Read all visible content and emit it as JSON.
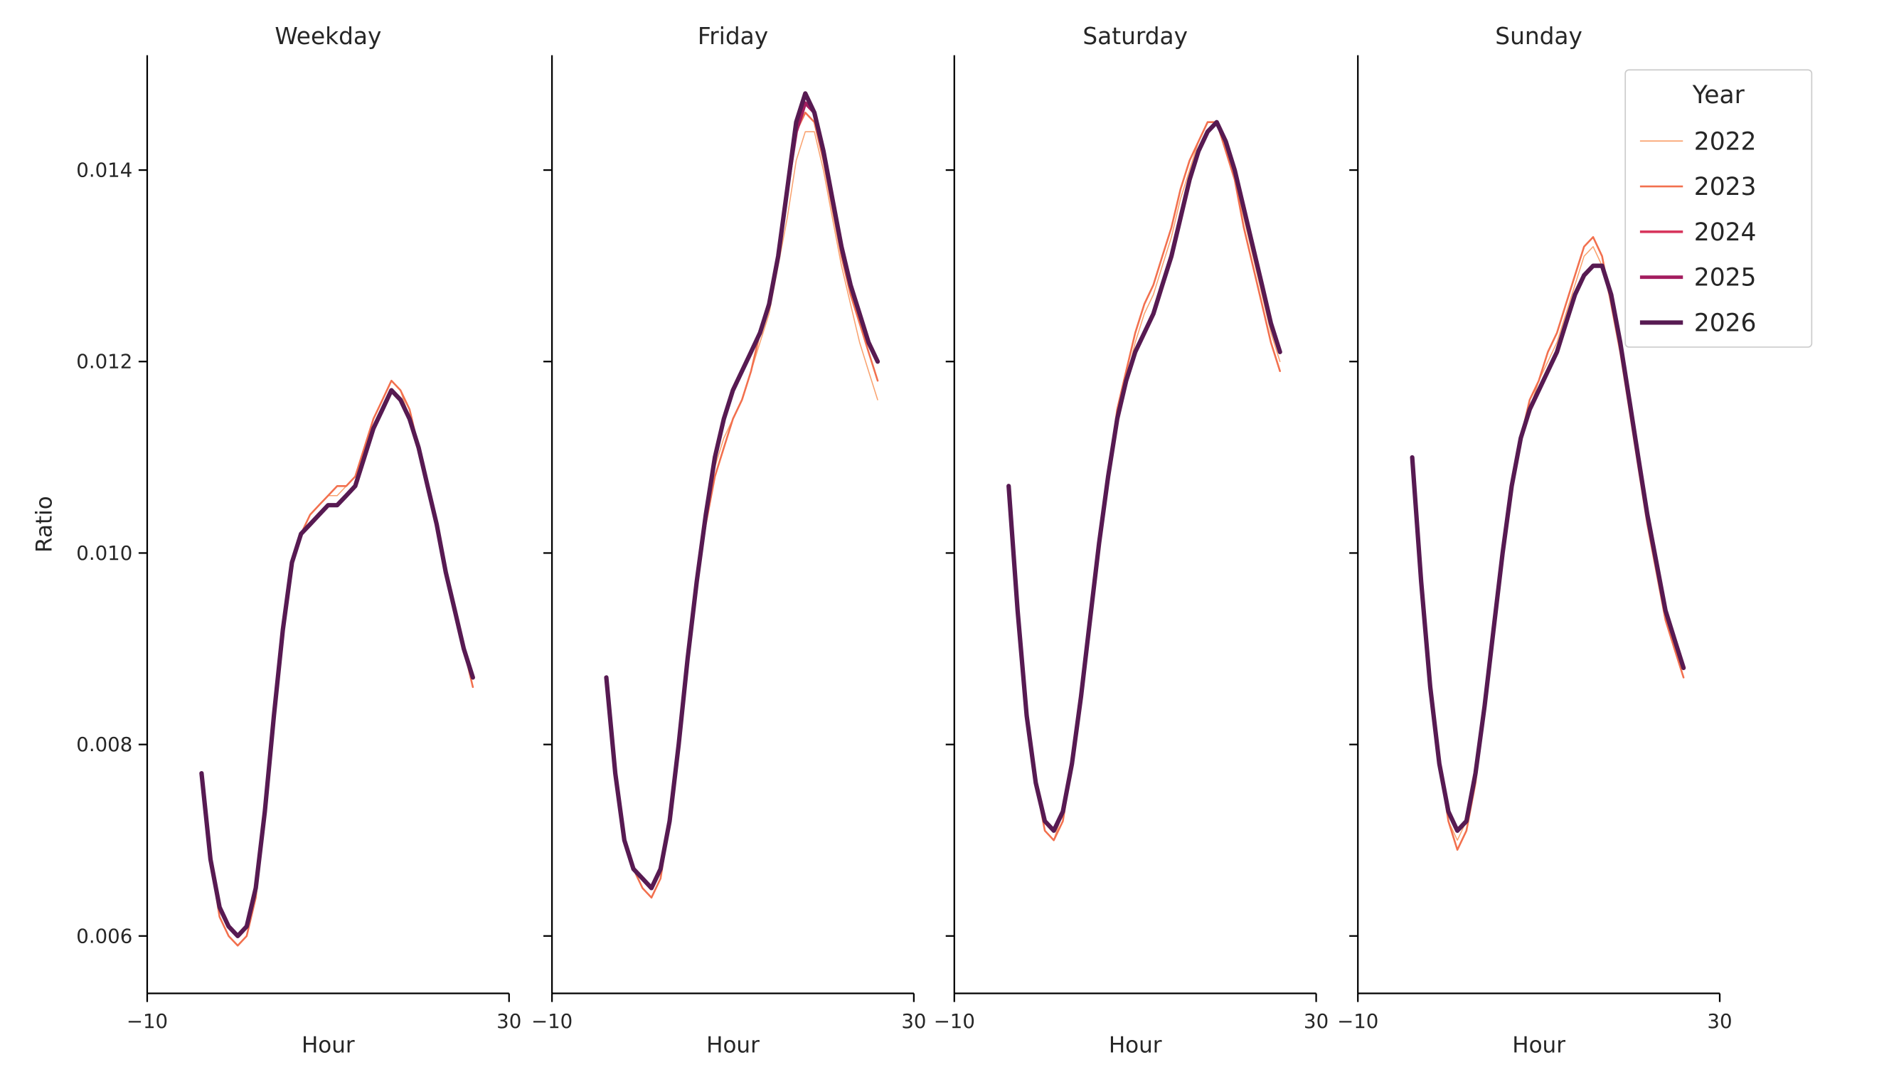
{
  "figure": {
    "background": "#ffffff",
    "text_color": "#262626",
    "axis_color": "#000000"
  },
  "legend": {
    "title": "Year",
    "entries": [
      {
        "label": "2022",
        "color": "#f9a26f",
        "line_width": 0.9
      },
      {
        "label": "2023",
        "color": "#f2704e",
        "line_width": 1.5
      },
      {
        "label": "2024",
        "color": "#d8365d",
        "line_width": 2.1
      },
      {
        "label": "2025",
        "color": "#a31d5f",
        "line_width": 2.8
      },
      {
        "label": "2026",
        "color": "#571a52",
        "line_width": 3.6
      }
    ]
  },
  "axes": {
    "ylabel": "Ratio",
    "xlim": [
      -10,
      30
    ],
    "ylim": [
      0.0054,
      0.0152
    ],
    "grid": false,
    "x_ticks": [
      {
        "value": -10,
        "label": "−10"
      },
      {
        "value": 30,
        "label": "30"
      }
    ],
    "y_ticks": [
      {
        "value": 0.006,
        "label": "0.006"
      },
      {
        "value": 0.008,
        "label": "0.008"
      },
      {
        "value": 0.01,
        "label": "0.010"
      },
      {
        "value": 0.012,
        "label": "0.012"
      },
      {
        "value": 0.014,
        "label": "0.014"
      }
    ]
  },
  "chart_data": [
    {
      "type": "line",
      "title": "Weekday",
      "xlabel": "Hour",
      "x": [
        -4,
        -3,
        -2,
        -1,
        0,
        1,
        2,
        3,
        4,
        5,
        6,
        7,
        8,
        9,
        10,
        11,
        12,
        13,
        14,
        15,
        16,
        17,
        18,
        19,
        20,
        21,
        22,
        23,
        24,
        25,
        26
      ],
      "series": [
        {
          "name": "2022",
          "values": [
            0.0077,
            0.0068,
            0.0063,
            0.0061,
            0.006,
            0.0061,
            0.0065,
            0.0073,
            0.0083,
            0.0092,
            0.0099,
            0.0102,
            0.0104,
            0.0105,
            0.0106,
            0.0106,
            0.0107,
            0.0108,
            0.0111,
            0.0114,
            0.0116,
            0.0118,
            0.0117,
            0.0114,
            0.0111,
            0.0107,
            0.0103,
            0.0098,
            0.0094,
            0.009,
            0.0086
          ]
        },
        {
          "name": "2023",
          "values": [
            0.0077,
            0.0068,
            0.0062,
            0.006,
            0.0059,
            0.006,
            0.0064,
            0.0073,
            0.0083,
            0.0092,
            0.0099,
            0.0102,
            0.0104,
            0.0105,
            0.0106,
            0.0107,
            0.0107,
            0.0108,
            0.0111,
            0.0114,
            0.0116,
            0.0118,
            0.0117,
            0.0115,
            0.0111,
            0.0107,
            0.0103,
            0.0098,
            0.0094,
            0.009,
            0.0086
          ]
        },
        {
          "name": "2024",
          "values": [
            0.0077,
            0.0068,
            0.0063,
            0.0061,
            0.006,
            0.0061,
            0.0065,
            0.0073,
            0.0083,
            0.0092,
            0.0099,
            0.0102,
            0.0103,
            0.0104,
            0.0105,
            0.0105,
            0.0106,
            0.0107,
            0.011,
            0.0113,
            0.0115,
            0.0117,
            0.0116,
            0.0114,
            0.0111,
            0.0107,
            0.0103,
            0.0098,
            0.0094,
            0.009,
            0.0087
          ]
        },
        {
          "name": "2025",
          "values": [
            0.0077,
            0.0068,
            0.0063,
            0.0061,
            0.006,
            0.0061,
            0.0065,
            0.0073,
            0.0083,
            0.0092,
            0.0099,
            0.0102,
            0.0103,
            0.0104,
            0.0105,
            0.0105,
            0.0106,
            0.0107,
            0.011,
            0.0113,
            0.0115,
            0.0117,
            0.0116,
            0.0114,
            0.0111,
            0.0107,
            0.0103,
            0.0098,
            0.0094,
            0.009,
            0.0087
          ]
        },
        {
          "name": "2026",
          "values": [
            0.0077,
            0.0068,
            0.0063,
            0.0061,
            0.006,
            0.0061,
            0.0065,
            0.0073,
            0.0083,
            0.0092,
            0.0099,
            0.0102,
            0.0103,
            0.0104,
            0.0105,
            0.0105,
            0.0106,
            0.0107,
            0.011,
            0.0113,
            0.0115,
            0.0117,
            0.0116,
            0.0114,
            0.0111,
            0.0107,
            0.0103,
            0.0098,
            0.0094,
            0.009,
            0.0087
          ]
        }
      ]
    },
    {
      "type": "line",
      "title": "Friday",
      "xlabel": "Hour",
      "x": [
        -4,
        -3,
        -2,
        -1,
        0,
        1,
        2,
        3,
        4,
        5,
        6,
        7,
        8,
        9,
        10,
        11,
        12,
        13,
        14,
        15,
        16,
        17,
        18,
        19,
        20,
        21,
        22,
        23,
        24,
        25,
        26
      ],
      "series": [
        {
          "name": "2022",
          "values": [
            0.0087,
            0.0077,
            0.007,
            0.0067,
            0.0066,
            0.0065,
            0.0067,
            0.0072,
            0.008,
            0.0089,
            0.0097,
            0.0104,
            0.0109,
            0.0112,
            0.0114,
            0.0116,
            0.0119,
            0.0122,
            0.0125,
            0.013,
            0.0135,
            0.0141,
            0.0144,
            0.0144,
            0.014,
            0.0135,
            0.013,
            0.0126,
            0.0122,
            0.0119,
            0.0116
          ]
        },
        {
          "name": "2023",
          "values": [
            0.0087,
            0.0077,
            0.007,
            0.0067,
            0.0065,
            0.0064,
            0.0066,
            0.0072,
            0.008,
            0.0089,
            0.0097,
            0.0103,
            0.0108,
            0.0111,
            0.0114,
            0.0116,
            0.0119,
            0.0123,
            0.0126,
            0.0131,
            0.0138,
            0.0144,
            0.0146,
            0.0145,
            0.0141,
            0.0136,
            0.0131,
            0.0127,
            0.0124,
            0.0121,
            0.0118
          ]
        },
        {
          "name": "2024",
          "values": [
            0.0087,
            0.0077,
            0.007,
            0.0067,
            0.0066,
            0.0065,
            0.0067,
            0.0072,
            0.008,
            0.0089,
            0.0097,
            0.0104,
            0.011,
            0.0114,
            0.0117,
            0.0119,
            0.0121,
            0.0123,
            0.0126,
            0.0131,
            0.0138,
            0.0144,
            0.0147,
            0.0146,
            0.0142,
            0.0137,
            0.0132,
            0.0128,
            0.0125,
            0.0122,
            0.012
          ]
        },
        {
          "name": "2025",
          "values": [
            0.0087,
            0.0077,
            0.007,
            0.0067,
            0.0066,
            0.0065,
            0.0067,
            0.0072,
            0.008,
            0.0089,
            0.0097,
            0.0104,
            0.011,
            0.0114,
            0.0117,
            0.0119,
            0.0121,
            0.0123,
            0.0126,
            0.0131,
            0.0138,
            0.0144,
            0.0147,
            0.0146,
            0.0142,
            0.0137,
            0.0132,
            0.0128,
            0.0125,
            0.0122,
            0.012
          ]
        },
        {
          "name": "2026",
          "values": [
            0.0087,
            0.0077,
            0.007,
            0.0067,
            0.0066,
            0.0065,
            0.0067,
            0.0072,
            0.008,
            0.0089,
            0.0097,
            0.0104,
            0.011,
            0.0114,
            0.0117,
            0.0119,
            0.0121,
            0.0123,
            0.0126,
            0.0131,
            0.0138,
            0.0145,
            0.0148,
            0.0146,
            0.0142,
            0.0137,
            0.0132,
            0.0128,
            0.0125,
            0.0122,
            0.012
          ]
        }
      ]
    },
    {
      "type": "line",
      "title": "Saturday",
      "xlabel": "Hour",
      "x": [
        -4,
        -3,
        -2,
        -1,
        0,
        1,
        2,
        3,
        4,
        5,
        6,
        7,
        8,
        9,
        10,
        11,
        12,
        13,
        14,
        15,
        16,
        17,
        18,
        19,
        20,
        21,
        22,
        23,
        24,
        25,
        26
      ],
      "series": [
        {
          "name": "2022",
          "values": [
            0.0107,
            0.0094,
            0.0083,
            0.0076,
            0.0071,
            0.007,
            0.0073,
            0.0078,
            0.0085,
            0.0093,
            0.0101,
            0.0108,
            0.0114,
            0.0118,
            0.0122,
            0.0125,
            0.0127,
            0.013,
            0.0133,
            0.0137,
            0.014,
            0.0143,
            0.0145,
            0.0145,
            0.0143,
            0.0139,
            0.0135,
            0.0131,
            0.0127,
            0.0123,
            0.012
          ]
        },
        {
          "name": "2023",
          "values": [
            0.0107,
            0.0094,
            0.0083,
            0.0076,
            0.0071,
            0.007,
            0.0072,
            0.0078,
            0.0085,
            0.0093,
            0.0101,
            0.0108,
            0.0115,
            0.0119,
            0.0123,
            0.0126,
            0.0128,
            0.0131,
            0.0134,
            0.0138,
            0.0141,
            0.0143,
            0.0145,
            0.0145,
            0.0142,
            0.0139,
            0.0134,
            0.013,
            0.0126,
            0.0122,
            0.0119
          ]
        },
        {
          "name": "2024",
          "values": [
            0.0107,
            0.0094,
            0.0083,
            0.0076,
            0.0072,
            0.0071,
            0.0073,
            0.0078,
            0.0085,
            0.0093,
            0.0101,
            0.0108,
            0.0114,
            0.0118,
            0.0121,
            0.0123,
            0.0125,
            0.0128,
            0.0131,
            0.0135,
            0.0139,
            0.0142,
            0.0144,
            0.0145,
            0.0143,
            0.014,
            0.0136,
            0.0132,
            0.0128,
            0.0124,
            0.0121
          ]
        },
        {
          "name": "2025",
          "values": [
            0.0107,
            0.0094,
            0.0083,
            0.0076,
            0.0072,
            0.0071,
            0.0073,
            0.0078,
            0.0085,
            0.0093,
            0.0101,
            0.0108,
            0.0114,
            0.0118,
            0.0121,
            0.0123,
            0.0125,
            0.0128,
            0.0131,
            0.0135,
            0.0139,
            0.0142,
            0.0144,
            0.0145,
            0.0143,
            0.014,
            0.0136,
            0.0132,
            0.0128,
            0.0124,
            0.0121
          ]
        },
        {
          "name": "2026",
          "values": [
            0.0107,
            0.0094,
            0.0083,
            0.0076,
            0.0072,
            0.0071,
            0.0073,
            0.0078,
            0.0085,
            0.0093,
            0.0101,
            0.0108,
            0.0114,
            0.0118,
            0.0121,
            0.0123,
            0.0125,
            0.0128,
            0.0131,
            0.0135,
            0.0139,
            0.0142,
            0.0144,
            0.0145,
            0.0143,
            0.014,
            0.0136,
            0.0132,
            0.0128,
            0.0124,
            0.0121
          ]
        }
      ]
    },
    {
      "type": "line",
      "title": "Sunday",
      "xlabel": "Hour",
      "x": [
        -4,
        -3,
        -2,
        -1,
        0,
        1,
        2,
        3,
        4,
        5,
        6,
        7,
        8,
        9,
        10,
        11,
        12,
        13,
        14,
        15,
        16,
        17,
        18,
        19,
        20,
        21,
        22,
        23,
        24,
        25,
        26
      ],
      "series": [
        {
          "name": "2022",
          "values": [
            0.011,
            0.0097,
            0.0086,
            0.0078,
            0.0072,
            0.007,
            0.0072,
            0.0077,
            0.0084,
            0.0092,
            0.01,
            0.0107,
            0.0112,
            0.0115,
            0.0118,
            0.012,
            0.0122,
            0.0125,
            0.0128,
            0.0131,
            0.0132,
            0.013,
            0.0126,
            0.0121,
            0.0115,
            0.0109,
            0.0103,
            0.0098,
            0.0094,
            0.009,
            0.0087
          ]
        },
        {
          "name": "2023",
          "values": [
            0.011,
            0.0097,
            0.0086,
            0.0078,
            0.0072,
            0.0069,
            0.0071,
            0.0076,
            0.0084,
            0.0092,
            0.01,
            0.0107,
            0.0112,
            0.0116,
            0.0118,
            0.0121,
            0.0123,
            0.0126,
            0.0129,
            0.0132,
            0.0133,
            0.0131,
            0.0126,
            0.0121,
            0.0115,
            0.0109,
            0.0103,
            0.0098,
            0.0093,
            0.009,
            0.0087
          ]
        },
        {
          "name": "2024",
          "values": [
            0.011,
            0.0097,
            0.0086,
            0.0078,
            0.0073,
            0.0071,
            0.0072,
            0.0077,
            0.0084,
            0.0092,
            0.01,
            0.0107,
            0.0112,
            0.0115,
            0.0117,
            0.0119,
            0.0121,
            0.0124,
            0.0127,
            0.0129,
            0.013,
            0.013,
            0.0127,
            0.0122,
            0.0116,
            0.011,
            0.0104,
            0.0099,
            0.0094,
            0.0091,
            0.0088
          ]
        },
        {
          "name": "2025",
          "values": [
            0.011,
            0.0097,
            0.0086,
            0.0078,
            0.0073,
            0.0071,
            0.0072,
            0.0077,
            0.0084,
            0.0092,
            0.01,
            0.0107,
            0.0112,
            0.0115,
            0.0117,
            0.0119,
            0.0121,
            0.0124,
            0.0127,
            0.0129,
            0.013,
            0.013,
            0.0127,
            0.0122,
            0.0116,
            0.011,
            0.0104,
            0.0099,
            0.0094,
            0.0091,
            0.0088
          ]
        },
        {
          "name": "2026",
          "values": [
            0.011,
            0.0097,
            0.0086,
            0.0078,
            0.0073,
            0.0071,
            0.0072,
            0.0077,
            0.0084,
            0.0092,
            0.01,
            0.0107,
            0.0112,
            0.0115,
            0.0117,
            0.0119,
            0.0121,
            0.0124,
            0.0127,
            0.0129,
            0.013,
            0.013,
            0.0127,
            0.0122,
            0.0116,
            0.011,
            0.0104,
            0.0099,
            0.0094,
            0.0091,
            0.0088
          ]
        }
      ]
    }
  ]
}
